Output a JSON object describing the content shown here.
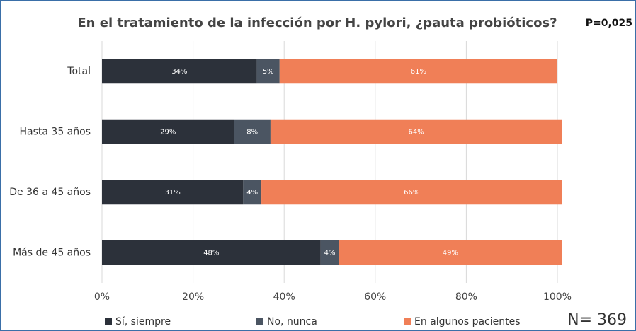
{
  "chart_data": {
    "type": "stacked_barh",
    "title": "En el tratamiento de la infección por H. pylori, ¿pauta probióticos?",
    "annotations": [
      "P=0,025",
      "N= 369"
    ],
    "categories": [
      "Total",
      "Hasta 35 años",
      "De 36 a 45 años",
      "Más de 45 años"
    ],
    "series": [
      {
        "name": "Sí, siempre",
        "color": "#2c313a",
        "values": [
          34,
          29,
          31,
          48
        ],
        "value_labels": [
          "34%",
          "29%",
          "31%",
          "48%"
        ]
      },
      {
        "name": "No, nunca",
        "color": "#4b5562",
        "values": [
          5,
          8,
          4,
          4
        ],
        "value_labels": [
          "5%",
          "8%",
          "4%",
          "4%"
        ]
      },
      {
        "name": "En algunos pacientes",
        "color": "#f07f57",
        "values": [
          61,
          64,
          66,
          49
        ],
        "value_labels": [
          "61%",
          "64%",
          "66%",
          "49%"
        ]
      }
    ],
    "xlim": [
      0,
      100
    ],
    "xticks": [
      {
        "value": 0,
        "label": "0%"
      },
      {
        "value": 20,
        "label": "20%"
      },
      {
        "value": 40,
        "label": "40%"
      },
      {
        "value": 60,
        "label": "60%"
      },
      {
        "value": 80,
        "label": "80%"
      },
      {
        "value": 100,
        "label": "100%"
      }
    ],
    "grid": true,
    "legend": "bottom"
  }
}
